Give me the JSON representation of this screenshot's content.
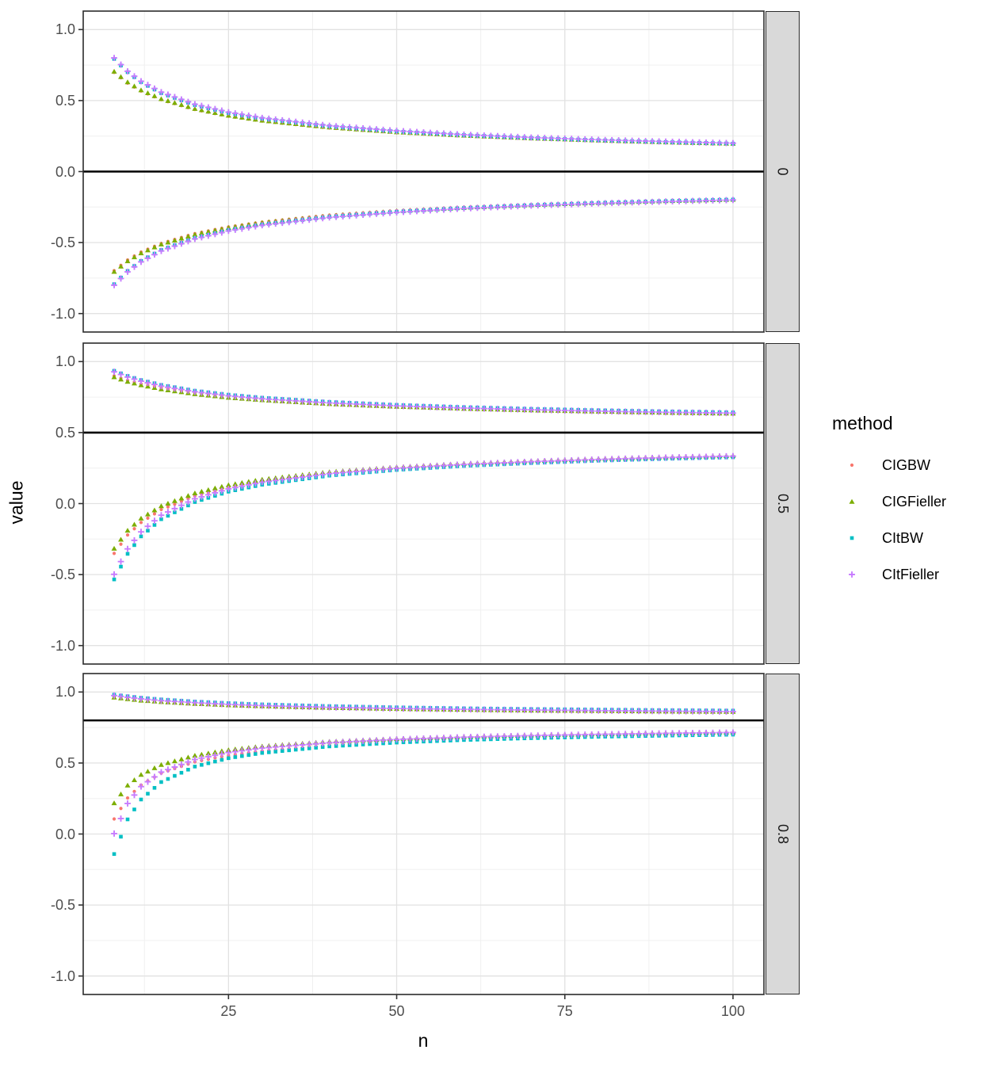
{
  "legend": {
    "title": "method"
  },
  "chart_data": {
    "type": "scatter",
    "title": "",
    "xlabel": "n",
    "ylabel": "value",
    "facet_labels": [
      "0",
      "0.5",
      "0.8"
    ],
    "x_axis": {
      "tick_values": [
        25,
        50,
        75,
        100
      ],
      "tick_labels": [
        "25",
        "50",
        "75",
        "100"
      ],
      "minor_ticks": [
        12.5,
        37.5,
        62.5,
        87.5
      ],
      "limits": [
        3.4,
        104.6
      ],
      "points_start": 8,
      "points_end": 100,
      "points_step": 1
    },
    "y_axis": {
      "tick_values": [
        1.0,
        0.5,
        0.0,
        -0.5,
        -1.0
      ],
      "tick_labels": [
        "1.0",
        "0.5",
        "0.0",
        "-0.5",
        "-1.0"
      ],
      "minor_ticks": [
        0.75,
        0.25,
        -0.25,
        -0.75
      ],
      "limits": [
        -1.13,
        1.13
      ]
    },
    "series_defs": [
      {
        "name": "CIGBW",
        "color": "#F8766D",
        "shape": "circle"
      },
      {
        "name": "CIGFieller",
        "color": "#7CAE00",
        "shape": "triangle"
      },
      {
        "name": "CItBW",
        "color": "#00BFC4",
        "shape": "square"
      },
      {
        "name": "CItFieller",
        "color": "#C77CFF",
        "shape": "plus"
      }
    ],
    "anchor_n": [
      8,
      10,
      12,
      15,
      20,
      25,
      30,
      40,
      50,
      60,
      70,
      80,
      90,
      100
    ],
    "panels": [
      {
        "label": "0",
        "hline": 0,
        "bounds": {
          "CIGBW": {
            "upper": [
              0.698,
              0.623,
              0.567,
              0.506,
              0.437,
              0.39,
              0.356,
              0.307,
              0.275,
              0.25,
              0.232,
              0.217,
              0.204,
              0.194
            ],
            "lower": [
              -0.698,
              -0.623,
              -0.567,
              -0.506,
              -0.437,
              -0.39,
              -0.356,
              -0.307,
              -0.275,
              -0.25,
              -0.232,
              -0.217,
              -0.204,
              -0.194
            ]
          },
          "CIGFieller": {
            "upper": [
              0.705,
              0.63,
              0.574,
              0.512,
              0.443,
              0.395,
              0.36,
              0.312,
              0.278,
              0.254,
              0.235,
              0.22,
              0.207,
              0.197
            ],
            "lower": [
              -0.705,
              -0.63,
              -0.574,
              -0.512,
              -0.443,
              -0.395,
              -0.36,
              -0.312,
              -0.278,
              -0.254,
              -0.235,
              -0.22,
              -0.207,
              -0.197
            ]
          },
          "CItBW": {
            "upper": [
              0.793,
              0.7,
              0.629,
              0.552,
              0.468,
              0.412,
              0.373,
              0.319,
              0.283,
              0.257,
              0.237,
              0.221,
              0.208,
              0.197
            ],
            "lower": [
              -0.793,
              -0.7,
              -0.629,
              -0.552,
              -0.468,
              -0.412,
              -0.373,
              -0.319,
              -0.283,
              -0.257,
              -0.237,
              -0.221,
              -0.208,
              -0.197
            ]
          },
          "CItFieller": {
            "upper": [
              0.8,
              0.706,
              0.636,
              0.559,
              0.474,
              0.418,
              0.378,
              0.323,
              0.287,
              0.26,
              0.24,
              0.224,
              0.211,
              0.2
            ],
            "lower": [
              -0.8,
              -0.706,
              -0.636,
              -0.559,
              -0.474,
              -0.418,
              -0.378,
              -0.323,
              -0.287,
              -0.26,
              -0.24,
              -0.224,
              -0.211,
              -0.2
            ]
          }
        }
      },
      {
        "label": "0.5",
        "hline": 0.5,
        "bounds": {
          "CIGBW": {
            "upper": [
              0.899,
              0.868,
              0.843,
              0.815,
              0.781,
              0.756,
              0.737,
              0.709,
              0.69,
              0.676,
              0.664,
              0.655,
              0.647,
              0.64
            ],
            "lower": [
              -0.351,
              -0.221,
              -0.133,
              -0.042,
              0.053,
              0.112,
              0.154,
              0.21,
              0.245,
              0.271,
              0.291,
              0.306,
              0.318,
              0.329
            ]
          },
          "CIGFieller": {
            "upper": [
              0.891,
              0.859,
              0.835,
              0.806,
              0.772,
              0.747,
              0.729,
              0.702,
              0.683,
              0.669,
              0.658,
              0.649,
              0.641,
              0.635
            ],
            "lower": [
              -0.316,
              -0.189,
              -0.104,
              -0.017,
              0.074,
              0.131,
              0.17,
              0.223,
              0.257,
              0.282,
              0.3,
              0.315,
              0.327,
              0.337
            ]
          },
          "CItBW": {
            "upper": [
              0.935,
              0.899,
              0.87,
              0.836,
              0.795,
              0.767,
              0.746,
              0.716,
              0.695,
              0.679,
              0.667,
              0.657,
              0.649,
              0.642
            ],
            "lower": [
              -0.534,
              -0.354,
              -0.231,
              -0.11,
              0.011,
              0.084,
              0.133,
              0.197,
              0.237,
              0.265,
              0.285,
              0.302,
              0.315,
              0.326
            ]
          },
          "CItFieller": {
            "upper": [
              0.928,
              0.891,
              0.862,
              0.827,
              0.787,
              0.759,
              0.738,
              0.709,
              0.688,
              0.673,
              0.661,
              0.651,
              0.643,
              0.637
            ],
            "lower": [
              -0.498,
              -0.319,
              -0.199,
              -0.082,
              0.034,
              0.104,
              0.151,
              0.211,
              0.249,
              0.276,
              0.295,
              0.311,
              0.324,
              0.334
            ]
          }
        }
      },
      {
        "label": "0.8",
        "hline": 0.8,
        "bounds": {
          "CIGBW": {
            "upper": [
              0.97,
              0.959,
              0.951,
              0.94,
              0.927,
              0.917,
              0.91,
              0.898,
              0.89,
              0.884,
              0.879,
              0.875,
              0.871,
              0.868
            ],
            "lower": [
              0.106,
              0.254,
              0.345,
              0.429,
              0.508,
              0.555,
              0.585,
              0.625,
              0.649,
              0.667,
              0.679,
              0.69,
              0.698,
              0.704
            ]
          },
          "CIGFieller": {
            "upper": [
              0.962,
              0.951,
              0.941,
              0.931,
              0.918,
              0.908,
              0.901,
              0.89,
              0.882,
              0.876,
              0.871,
              0.868,
              0.864,
              0.862
            ],
            "lower": [
              0.218,
              0.343,
              0.418,
              0.488,
              0.553,
              0.592,
              0.618,
              0.651,
              0.671,
              0.685,
              0.696,
              0.704,
              0.711,
              0.717
            ]
          },
          "CItBW": {
            "upper": [
              0.981,
              0.97,
              0.96,
              0.948,
              0.933,
              0.922,
              0.913,
              0.901,
              0.892,
              0.885,
              0.88,
              0.876,
              0.872,
              0.869
            ],
            "lower": [
              -0.141,
              0.103,
              0.243,
              0.366,
              0.475,
              0.534,
              0.571,
              0.617,
              0.644,
              0.662,
              0.675,
              0.685,
              0.693,
              0.7
            ]
          },
          "CItFieller": {
            "upper": [
              0.975,
              0.963,
              0.952,
              0.939,
              0.925,
              0.913,
              0.904,
              0.892,
              0.884,
              0.878,
              0.873,
              0.869,
              0.865,
              0.862
            ],
            "lower": [
              0.003,
              0.215,
              0.334,
              0.436,
              0.525,
              0.574,
              0.605,
              0.643,
              0.666,
              0.682,
              0.693,
              0.702,
              0.709,
              0.715
            ]
          }
        }
      }
    ],
    "colors": {
      "grid_major": "#E2E2E2",
      "grid_minor": "#F0F0F0",
      "panel_border": "#2B2B2B",
      "strip_bg": "#D9D9D9",
      "hline": "#000000",
      "tick_text": "#4D4D4D",
      "tick_mark": "#333333"
    }
  }
}
